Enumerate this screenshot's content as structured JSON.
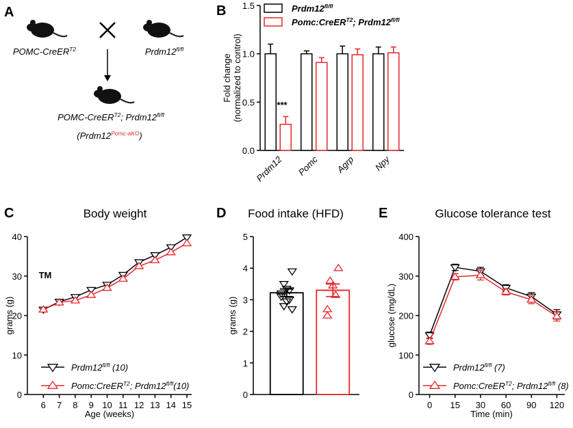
{
  "diagram": {
    "panel": "A",
    "parent1": [
      {
        "text": "POMC-CreER"
      },
      {
        "text": "T2",
        "sup": true
      }
    ],
    "parent2": [
      {
        "text": "Prdm12"
      },
      {
        "text": "fl/fl",
        "sup": true
      }
    ],
    "offspring": [
      {
        "text": "POMC-CreER"
      },
      {
        "text": "T2",
        "sup": true
      },
      {
        "text": "; Prdm12"
      },
      {
        "text": "fl/fl",
        "sup": true
      }
    ],
    "alias": [
      {
        "text": "(Prdm12"
      },
      {
        "text": "Pomc-aKO",
        "sup": true,
        "color": "#e8262a"
      },
      {
        "text": ")"
      }
    ]
  },
  "chart_data": [
    {
      "type": "bar",
      "panel": "B",
      "ylabel": [
        "Fold change",
        "(normalized to control)"
      ],
      "categories": [
        "Prdm12",
        "Pomc",
        "Agrp",
        "Npy"
      ],
      "series": [
        {
          "name": [
            {
              "text": "Prdm12"
            },
            {
              "text": "fl/fl",
              "sup": true
            }
          ],
          "color": "#000000",
          "values": [
            1.0,
            1.0,
            1.0,
            1.0
          ],
          "errors": [
            0.1,
            0.03,
            0.08,
            0.07
          ]
        },
        {
          "name": [
            {
              "text": "Pomc:CreER"
            },
            {
              "text": "T2",
              "sup": true
            },
            {
              "text": "; Prdm12"
            },
            {
              "text": "fl/fl",
              "sup": true
            }
          ],
          "color": "#e8262a",
          "values": [
            0.27,
            0.91,
            0.99,
            1.01
          ],
          "errors": [
            0.08,
            0.05,
            0.06,
            0.06
          ]
        }
      ],
      "ylim": [
        0,
        1.5
      ],
      "yticks": [
        {
          "value": 0,
          "label": "0.0"
        },
        0.5,
        {
          "value": 1,
          "label": "1.0"
        },
        1.5
      ],
      "annotations": [
        {
          "text": "***",
          "color": "#e8262a"
        }
      ]
    },
    {
      "type": "line",
      "panel": "C",
      "title": "Body weight",
      "ylabel": "grams (g)",
      "xlabel": "Age (weeks)",
      "x": [
        6,
        7,
        8,
        9,
        10,
        11,
        12,
        13,
        14,
        15
      ],
      "series": [
        {
          "name": [
            {
              "text": "Prdm12"
            },
            {
              "text": "fl/fl",
              "sup": true
            },
            {
              "text": " (10)"
            }
          ],
          "color": "#000000",
          "marker": "triangle-down",
          "values": [
            21.5,
            23.5,
            24.7,
            26.5,
            27.8,
            30.3,
            33.5,
            35.3,
            37.3,
            39.8
          ]
        },
        {
          "name": [
            {
              "text": "Pomc:CreER"
            },
            {
              "text": "T2",
              "sup": true
            },
            {
              "text": "; Prdm12"
            },
            {
              "text": "fl/fl",
              "sup": true
            },
            {
              "text": "(10)"
            }
          ],
          "color": "#e8262a",
          "marker": "triangle-up",
          "values": [
            21.5,
            23.3,
            23.8,
            25.2,
            27.0,
            29.3,
            32.5,
            34.0,
            36.0,
            38.3
          ]
        }
      ],
      "xlim": [
        5,
        15.3
      ],
      "xticks": [
        6,
        7,
        8,
        9,
        10,
        11,
        12,
        13,
        14,
        15
      ],
      "ylim": [
        0,
        40
      ],
      "yticks": [
        0,
        10,
        20,
        30,
        40
      ],
      "annotations": [
        {
          "text": "TM",
          "color": "#6a1b9a"
        }
      ]
    },
    {
      "type": "bar",
      "panel": "D",
      "title": "Food intake (HFD)",
      "ylabel": "grams (g)",
      "categories": [
        null,
        null
      ],
      "values": [
        3.22,
        3.3
      ],
      "errors": [
        0.12,
        0.2
      ],
      "colors": [
        "#000000",
        "#e8262a"
      ],
      "markers": [
        "triangle-down",
        "triangle-up"
      ],
      "points": [
        [
          3.9,
          3.5,
          3.35,
          3.3,
          3.2,
          3.1,
          3.0,
          2.95,
          2.8,
          2.7
        ],
        [
          4.0,
          3.6,
          3.45,
          3.15,
          2.7,
          2.5
        ]
      ],
      "ylim": [
        0,
        5
      ],
      "yticks": [
        0,
        1,
        2,
        3,
        4,
        5
      ]
    },
    {
      "type": "line",
      "panel": "E",
      "title": "Glucose tolerance test",
      "ylabel": "glucose (mg/dL)",
      "xlabel": "Time (min)",
      "categories": [
        "0",
        "15",
        "30",
        "60",
        "90",
        "120"
      ],
      "series": [
        {
          "name": [
            {
              "text": "Prdm12"
            },
            {
              "text": "fl/fl",
              "sup": true
            },
            {
              "text": " (7)"
            }
          ],
          "color": "#000000",
          "marker": "triangle-down",
          "values": [
            150,
            322,
            312,
            270,
            248,
            203
          ],
          "errors": [
            8,
            8,
            10,
            8,
            10,
            12
          ]
        },
        {
          "name": [
            {
              "text": "Pomc:CreER"
            },
            {
              "text": "T2",
              "sup": true
            },
            {
              "text": "; Prdm12"
            },
            {
              "text": "fl/fl",
              "sup": true
            },
            {
              "text": " (8)"
            }
          ],
          "color": "#e8262a",
          "marker": "triangle-up",
          "values": [
            135,
            298,
            302,
            260,
            240,
            198
          ],
          "errors": [
            8,
            8,
            12,
            8,
            10,
            12
          ]
        }
      ],
      "ylim": [
        0,
        400
      ],
      "yticks": [
        0,
        100,
        200,
        300,
        400
      ]
    }
  ]
}
